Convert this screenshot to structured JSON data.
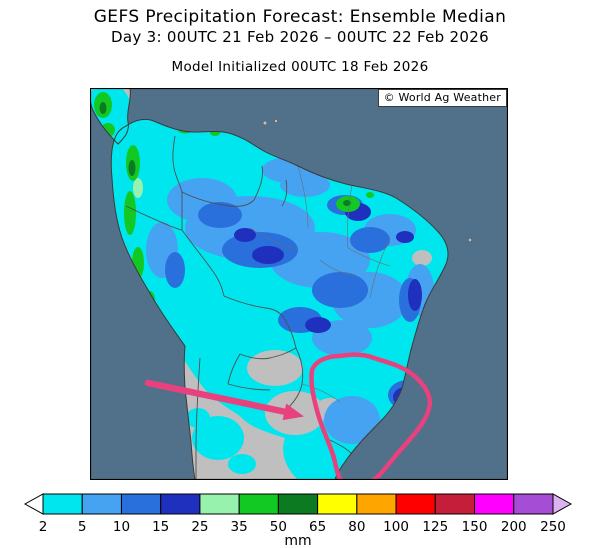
{
  "header": {
    "title": "GEFS Precipitation Forecast: Ensemble Median",
    "subtitle": "Day 3: 00UTC 21 Feb 2026 – 00UTC 22 Feb 2026",
    "init_line": "Model Initialized 00UTC 18 Feb 2026"
  },
  "map": {
    "watermark": "© World Ag Weather",
    "ocean_color": "#51718A",
    "land_color": "#BFBFBF",
    "annotation_color": "#E8417E"
  },
  "chart_data": {
    "type": "heatmap",
    "title": "GEFS Precipitation Forecast: Ensemble Median",
    "region": "South America",
    "variable": "Precipitation",
    "units": "mm",
    "valid_period": "Day 3: 00UTC 21 Feb 2026 – 00UTC 22 Feb 2026",
    "model_initialized": "00UTC 18 Feb 2026",
    "legend": {
      "tick_labels": [
        "2",
        "5",
        "10",
        "15",
        "25",
        "35",
        "50",
        "65",
        "80",
        "100",
        "125",
        "150",
        "200",
        "250"
      ],
      "segment_colors": [
        "#00E6EE",
        "#46A3F2",
        "#2A70DC",
        "#1F2FBE",
        "#96F2AC",
        "#12C823",
        "#0C7A20",
        "#FFFF00",
        "#FFA500",
        "#FF0000",
        "#C41E3A",
        "#FF00FF",
        "#A64DD6"
      ],
      "under_arrow_color": "#FFFFFF",
      "over_arrow_color": "#D9B3F2",
      "units_label": "mm",
      "position": "bottom"
    },
    "annotations": [
      {
        "type": "arrow",
        "color": "#E8417E",
        "description": "hand-drawn arrow pointing into the dry south-central interior"
      },
      {
        "type": "outline",
        "color": "#E8417E",
        "description": "hand-drawn loop encircling the southern Brazil region"
      }
    ]
  }
}
